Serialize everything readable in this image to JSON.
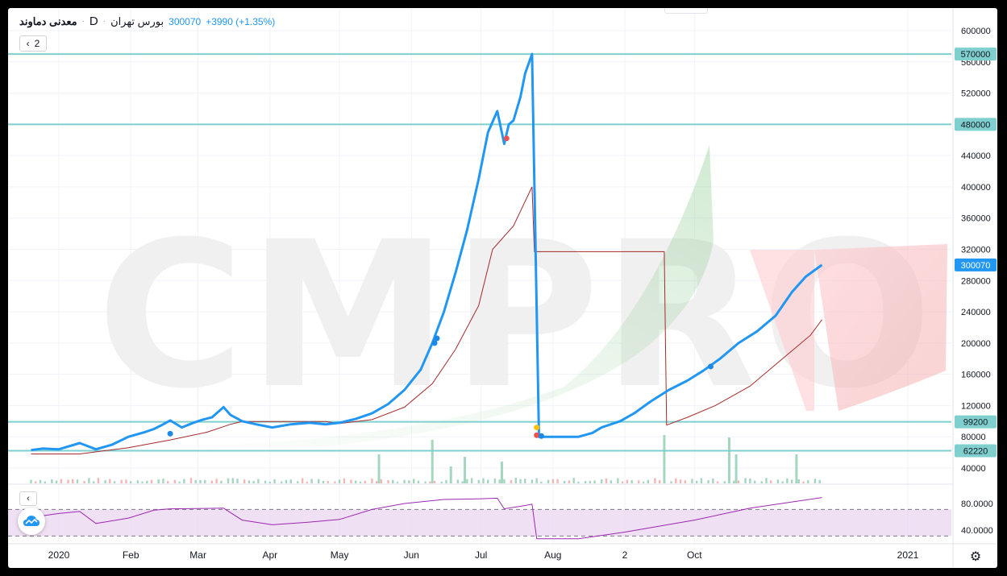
{
  "legend": {
    "symbol": "معدنی دماوند",
    "interval": "D",
    "exchange": "بورس تهران",
    "price": "300070",
    "change": "+3990 (+1.35%)",
    "collapse_count": "2"
  },
  "watermark": "CMPRO",
  "colors": {
    "price_line": "#2196f3",
    "ma_line": "#a52a2a",
    "hline": "#7fcfcf",
    "rsi_line": "#9c27b0",
    "rsi_band": "#e9d3ef",
    "vol_up": "#a5d6c0",
    "vol_down": "#f4b6b6"
  },
  "chart_data": [
    {
      "type": "line",
      "title": "",
      "y_axis": {
        "ticks": [
          40000,
          80000,
          120000,
          160000,
          200000,
          240000,
          280000,
          320000,
          360000,
          400000,
          440000,
          480000,
          520000,
          560000,
          600000
        ],
        "ylim": [
          0,
          620000
        ]
      },
      "x_axis": {
        "labels": [
          "2020",
          "Feb",
          "Mar",
          "Apr",
          "May",
          "Jun",
          "Jul",
          "Aug",
          "2",
          "Oct",
          "2021"
        ],
        "label_dates": [
          "2020-01-01",
          "2020-02-01",
          "2020-03-01",
          "2020-04-01",
          "2020-05-01",
          "2020-06-01",
          "2020-07-01",
          "2020-08-01",
          "2020-09-01",
          "2020-10-01",
          "2021-01-01"
        ]
      },
      "horizontal_levels": [
        570000,
        480000,
        99200,
        62220
      ],
      "price_tags": [
        {
          "value": "570000",
          "style": "level"
        },
        {
          "value": "480000",
          "style": "level"
        },
        {
          "value": "300070",
          "style": "last"
        },
        {
          "value": "99200",
          "style": "level"
        },
        {
          "value": "62220",
          "style": "level"
        }
      ],
      "series": [
        {
          "key": "close",
          "points": [
            [
              "2019-12-20",
              63000
            ],
            [
              "2019-12-25",
              65000
            ],
            [
              "2020-01-01",
              64000
            ],
            [
              "2020-01-10",
              72000
            ],
            [
              "2020-01-17",
              64000
            ],
            [
              "2020-01-24",
              70000
            ],
            [
              "2020-01-31",
              80000
            ],
            [
              "2020-02-07",
              86000
            ],
            [
              "2020-02-11",
              90000
            ],
            [
              "2020-02-15",
              96000
            ],
            [
              "2020-02-18",
              101000
            ],
            [
              "2020-02-23",
              92000
            ],
            [
              "2020-02-28",
              98000
            ],
            [
              "2020-03-03",
              102000
            ],
            [
              "2020-03-07",
              105000
            ],
            [
              "2020-03-12",
              118000
            ],
            [
              "2020-03-15",
              108000
            ],
            [
              "2020-03-20",
              100000
            ],
            [
              "2020-03-26",
              96000
            ],
            [
              "2020-04-02",
              92000
            ],
            [
              "2020-04-10",
              96000
            ],
            [
              "2020-04-18",
              98000
            ],
            [
              "2020-04-25",
              96000
            ],
            [
              "2020-05-01",
              98000
            ],
            [
              "2020-05-08",
              103000
            ],
            [
              "2020-05-15",
              110000
            ],
            [
              "2020-05-22",
              122000
            ],
            [
              "2020-05-29",
              140000
            ],
            [
              "2020-06-05",
              166000
            ],
            [
              "2020-06-10",
              200000
            ],
            [
              "2020-06-15",
              240000
            ],
            [
              "2020-06-20",
              290000
            ],
            [
              "2020-06-25",
              345000
            ],
            [
              "2020-06-30",
              410000
            ],
            [
              "2020-07-04",
              470000
            ],
            [
              "2020-07-08",
              497000
            ],
            [
              "2020-07-11",
              455000
            ],
            [
              "2020-07-13",
              480000
            ],
            [
              "2020-07-15",
              485000
            ],
            [
              "2020-07-18",
              515000
            ],
            [
              "2020-07-20",
              545000
            ],
            [
              "2020-07-23",
              570000
            ],
            [
              "2020-07-26",
              80000
            ],
            [
              "2020-08-02",
              80000
            ],
            [
              "2020-08-12",
              80000
            ],
            [
              "2020-08-18",
              85000
            ],
            [
              "2020-08-22",
              92000
            ],
            [
              "2020-08-30",
              100000
            ],
            [
              "2020-09-05",
              110000
            ],
            [
              "2020-09-12",
              125000
            ],
            [
              "2020-09-20",
              140000
            ],
            [
              "2020-09-28",
              152000
            ],
            [
              "2020-10-05",
              165000
            ],
            [
              "2020-10-12",
              180000
            ],
            [
              "2020-10-20",
              200000
            ],
            [
              "2020-10-28",
              215000
            ],
            [
              "2020-11-05",
              235000
            ],
            [
              "2020-11-12",
              265000
            ],
            [
              "2020-11-18",
              285000
            ],
            [
              "2020-11-25",
              300070
            ]
          ]
        },
        {
          "key": "moving_average",
          "points": [
            [
              "2019-12-20",
              58000
            ],
            [
              "2020-01-10",
              58000
            ],
            [
              "2020-01-31",
              66000
            ],
            [
              "2020-02-18",
              76000
            ],
            [
              "2020-03-05",
              86000
            ],
            [
              "2020-03-15",
              96000
            ],
            [
              "2020-03-20",
              99500
            ],
            [
              "2020-04-25",
              99500
            ],
            [
              "2020-05-01",
              97000
            ],
            [
              "2020-05-15",
              102000
            ],
            [
              "2020-05-29",
              118000
            ],
            [
              "2020-06-10",
              148000
            ],
            [
              "2020-06-20",
              192000
            ],
            [
              "2020-06-30",
              248000
            ],
            [
              "2020-07-06",
              320000
            ],
            [
              "2020-07-15",
              350000
            ],
            [
              "2020-07-23",
              400000
            ],
            [
              "2020-07-24",
              317000
            ],
            [
              "2020-09-18",
              317000
            ],
            [
              "2020-09-19",
              95000
            ],
            [
              "2020-09-28",
              105000
            ],
            [
              "2020-10-10",
              120000
            ],
            [
              "2020-10-25",
              145000
            ],
            [
              "2020-11-08",
              180000
            ],
            [
              "2020-11-20",
              210000
            ],
            [
              "2020-11-25",
              230000
            ]
          ]
        }
      ],
      "signals": [
        {
          "date": "2020-02-18",
          "value": 84000,
          "color": "#1e88e5"
        },
        {
          "date": "2020-06-11",
          "value": 200000,
          "color": "#1e88e5"
        },
        {
          "date": "2020-06-12",
          "value": 206000,
          "color": "#1e88e5"
        },
        {
          "date": "2020-07-12",
          "value": 462000,
          "color": "#ef5350"
        },
        {
          "date": "2020-07-25",
          "value": 92000,
          "color": "#ffc107"
        },
        {
          "date": "2020-07-25",
          "value": 82000,
          "color": "#ef5350"
        },
        {
          "date": "2020-07-27",
          "value": 81000,
          "color": "#1e88e5"
        },
        {
          "date": "2020-10-08",
          "value": 170000,
          "color": "#1e88e5"
        }
      ],
      "volume_spikes": [
        {
          "date": "2020-05-18",
          "height": 0.6
        },
        {
          "date": "2020-06-10",
          "height": 0.9
        },
        {
          "date": "2020-06-18",
          "height": 0.35
        },
        {
          "date": "2020-06-24",
          "height": 0.55
        },
        {
          "date": "2020-07-10",
          "height": 0.45
        },
        {
          "date": "2020-09-18",
          "height": 1.0
        },
        {
          "date": "2020-10-16",
          "height": 0.95
        },
        {
          "date": "2020-10-19",
          "height": 0.6
        },
        {
          "date": "2020-11-14",
          "height": 0.6
        }
      ]
    },
    {
      "type": "line",
      "title": "",
      "y_axis": {
        "ticks": [
          40.0,
          80.0
        ],
        "tick_labels": [
          "40.0000",
          "80.0000"
        ],
        "ylim": [
          20,
          110
        ]
      },
      "band": [
        31,
        71
      ],
      "series": [
        {
          "key": "oscillator",
          "points": [
            [
              "2019-12-20",
              59
            ],
            [
              "2020-01-01",
              65
            ],
            [
              "2020-01-10",
              68
            ],
            [
              "2020-01-17",
              50
            ],
            [
              "2020-01-31",
              58
            ],
            [
              "2020-02-11",
              70
            ],
            [
              "2020-02-18",
              72
            ],
            [
              "2020-03-12",
              73
            ],
            [
              "2020-03-20",
              55
            ],
            [
              "2020-04-02",
              48
            ],
            [
              "2020-04-18",
              52
            ],
            [
              "2020-05-01",
              56
            ],
            [
              "2020-05-15",
              71
            ],
            [
              "2020-05-29",
              80
            ],
            [
              "2020-06-15",
              86
            ],
            [
              "2020-06-30",
              87
            ],
            [
              "2020-07-08",
              88
            ],
            [
              "2020-07-11",
              72
            ],
            [
              "2020-07-20",
              77
            ],
            [
              "2020-07-23",
              79
            ],
            [
              "2020-07-25",
              27
            ],
            [
              "2020-08-12",
              27
            ],
            [
              "2020-09-01",
              37
            ],
            [
              "2020-10-01",
              55
            ],
            [
              "2020-10-25",
              73
            ],
            [
              "2020-11-25",
              89
            ]
          ]
        }
      ]
    }
  ]
}
